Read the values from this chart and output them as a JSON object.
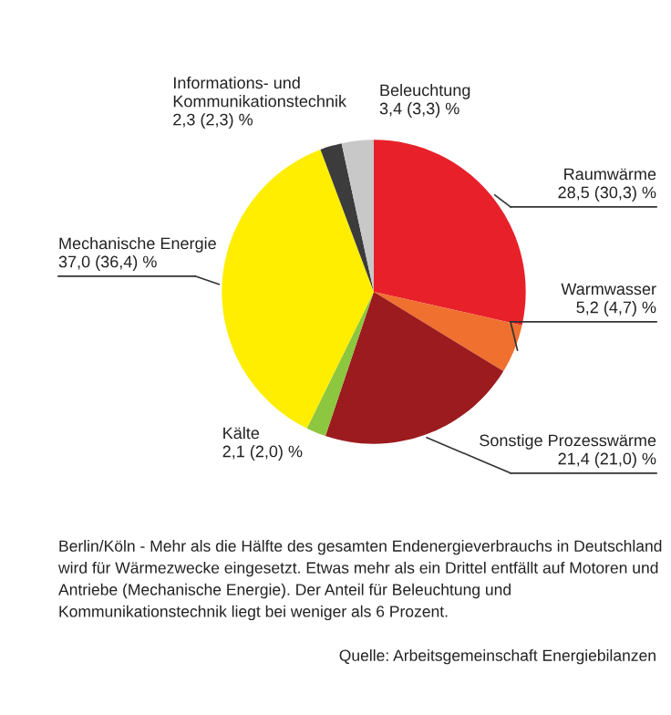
{
  "chart_data": {
    "type": "pie",
    "categories": [
      "Raumwärme",
      "Warmwasser",
      "Sonstige Prozesswärme",
      "Kälte",
      "Mechanische Energie",
      "Informations- und\nKommunikationstechnik",
      "Beleuchtung"
    ],
    "values": [
      28.5,
      5.2,
      21.4,
      2.1,
      37.0,
      2.3,
      3.4
    ],
    "value_labels": [
      "28,5 (30,3) %",
      "5,2 (4,7) %",
      "21,4 (21,0) %",
      "2,1 (2,0) %",
      "37,0 (36,4) %",
      "2,3 (2,3) %",
      "3,4 (3,3) %"
    ],
    "colors": [
      "#e8202a",
      "#f07030",
      "#9b1b1e",
      "#8dc63f",
      "#ffee00",
      "#3c3c3c",
      "#c8c8c8"
    ],
    "legend": false,
    "annotations": [
      "Berlin/Köln - Mehr als die Hälfte des gesamten Endenergieverbrauchs in Deutschland wird für Wärmezwecke eingesetzt. Etwas mehr als ein Drittel entfällt auf Motoren und Antriebe (Mechanische Energie). Der Anteil für Beleuchtung und Kommunikationstechnik liegt bei weniger als 6 Prozent.",
      "Quelle: Arbeitsgemeinschaft Energiebilanzen"
    ]
  }
}
